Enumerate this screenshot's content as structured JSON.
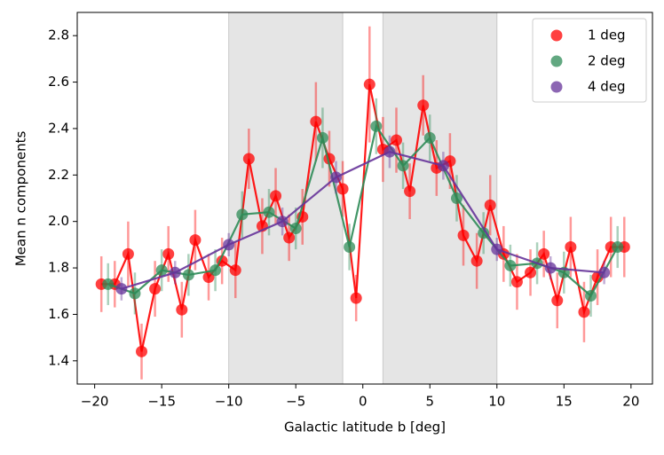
{
  "chart_data": {
    "type": "scatter_line",
    "xlabel": "Galactic latitude b [deg]",
    "ylabel": "Mean n components",
    "xlim": [
      -21.3,
      21.6
    ],
    "ylim": [
      1.3,
      2.9
    ],
    "xticks": [
      {
        "value": -20,
        "label": "−20"
      },
      {
        "value": -15,
        "label": "−15"
      },
      {
        "value": -10,
        "label": "−10"
      },
      {
        "value": -5,
        "label": "−5"
      },
      0,
      5,
      10,
      15,
      20
    ],
    "yticks": [
      1.4,
      1.6,
      1.8,
      2.0,
      2.2,
      2.4,
      2.6,
      2.8
    ],
    "shaded_regions": [
      [
        -10,
        -1.5
      ],
      [
        1.5,
        10
      ]
    ],
    "shade_color": "#e5e5e5",
    "legend": "upper right",
    "series": [
      {
        "name": "1 deg",
        "color": "#ff0000",
        "x": [
          -19.5,
          -18.5,
          -17.5,
          -16.5,
          -15.5,
          -14.5,
          -13.5,
          -12.5,
          -11.5,
          -10.5,
          -9.5,
          -8.5,
          -7.5,
          -6.5,
          -5.5,
          -4.5,
          -3.5,
          -2.5,
          -1.5,
          -0.5,
          0.5,
          1.5,
          2.5,
          3.5,
          4.5,
          5.5,
          6.5,
          7.5,
          8.5,
          9.5,
          10.5,
          11.5,
          12.5,
          13.5,
          14.5,
          15.5,
          16.5,
          17.5,
          18.5,
          19.5
        ],
        "values": [
          1.73,
          1.73,
          1.86,
          1.44,
          1.71,
          1.86,
          1.62,
          1.92,
          1.76,
          1.83,
          1.79,
          2.27,
          1.98,
          2.11,
          1.93,
          2.02,
          2.43,
          2.27,
          2.14,
          1.67,
          2.59,
          2.31,
          2.35,
          2.13,
          2.5,
          2.23,
          2.26,
          1.94,
          1.83,
          2.07,
          1.86,
          1.74,
          1.78,
          1.86,
          1.66,
          1.89,
          1.61,
          1.76,
          1.89,
          1.89
        ],
        "errors": [
          0.12,
          0.1,
          0.14,
          0.12,
          0.12,
          0.12,
          0.12,
          0.13,
          0.1,
          0.1,
          0.12,
          0.13,
          0.12,
          0.12,
          0.1,
          0.12,
          0.17,
          0.12,
          0.12,
          0.1,
          0.25,
          0.14,
          0.14,
          0.12,
          0.13,
          0.12,
          0.12,
          0.13,
          0.12,
          0.13,
          0.12,
          0.12,
          0.1,
          0.1,
          0.12,
          0.13,
          0.13,
          0.12,
          0.13,
          0.13
        ]
      },
      {
        "name": "2 deg",
        "color": "#2e8b57",
        "x": [
          -19,
          -17,
          -15,
          -13,
          -11,
          -9,
          -7,
          -5,
          -3,
          -1,
          1,
          3,
          5,
          7,
          9,
          11,
          13,
          15,
          17,
          19
        ],
        "values": [
          1.73,
          1.69,
          1.79,
          1.77,
          1.79,
          2.03,
          2.04,
          1.97,
          2.36,
          1.89,
          2.41,
          2.24,
          2.36,
          2.1,
          1.95,
          1.81,
          1.82,
          1.78,
          1.68,
          1.89
        ],
        "errors": [
          0.09,
          0.09,
          0.09,
          0.09,
          0.09,
          0.1,
          0.1,
          0.09,
          0.13,
          0.1,
          0.12,
          0.1,
          0.1,
          0.1,
          0.09,
          0.09,
          0.09,
          0.09,
          0.09,
          0.09
        ]
      },
      {
        "name": "4 deg",
        "color": "#663399",
        "x": [
          -18,
          -14,
          -10,
          -6,
          -2,
          2,
          6,
          10,
          14,
          18
        ],
        "values": [
          1.71,
          1.78,
          1.9,
          2.0,
          2.19,
          2.3,
          2.24,
          1.88,
          1.8,
          1.78
        ],
        "errors": [
          0.05,
          0.05,
          0.05,
          0.06,
          0.07,
          0.07,
          0.06,
          0.05,
          0.05,
          0.05
        ]
      }
    ]
  }
}
